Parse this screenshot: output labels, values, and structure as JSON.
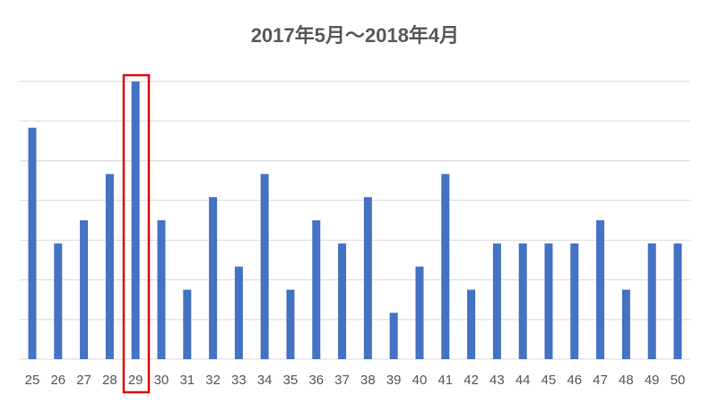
{
  "chart_data": {
    "type": "bar",
    "title": "2017年5月～2018年4月",
    "categories": [
      "25",
      "26",
      "27",
      "28",
      "29",
      "30",
      "31",
      "32",
      "33",
      "34",
      "35",
      "36",
      "37",
      "38",
      "39",
      "40",
      "41",
      "42",
      "43",
      "44",
      "45",
      "46",
      "47",
      "48",
      "49",
      "50"
    ],
    "values": [
      10,
      5,
      6,
      8,
      12,
      6,
      3,
      7,
      4,
      8,
      3,
      6,
      5,
      7,
      2,
      4,
      8,
      3,
      5,
      5,
      5,
      5,
      6,
      3,
      5,
      5
    ],
    "color": "#4472c4",
    "ylim": [
      0,
      12
    ],
    "yticks": [
      0,
      1.71,
      3.43,
      5.14,
      6.86,
      8.57,
      10.29,
      12
    ],
    "grid": true
  }
}
